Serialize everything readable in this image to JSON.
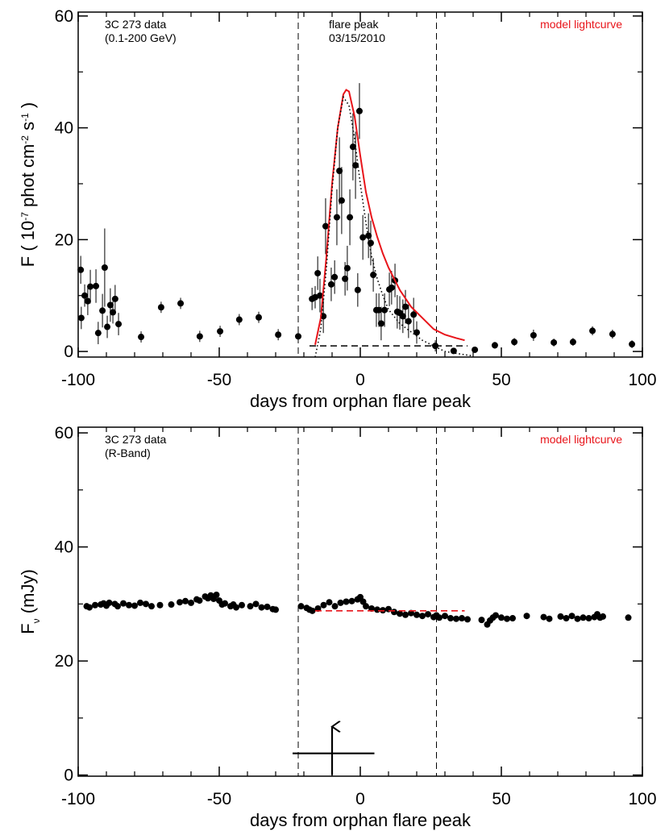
{
  "chart_data": [
    {
      "type": "scatter",
      "xlim": [
        -100,
        100
      ],
      "ylim": [
        -1,
        60.7
      ],
      "xticks": [
        -100,
        -50,
        0,
        50,
        100
      ],
      "yticks": [
        0,
        20,
        40,
        60
      ],
      "xminorticks": [
        -90,
        -80,
        -70,
        -60,
        -40,
        -30,
        -20,
        -10,
        10,
        20,
        30,
        40,
        60,
        70,
        80,
        90
      ],
      "yminorticks": [
        10,
        30,
        50
      ],
      "xlabel": "days from orphan flare peak",
      "ylabel": [
        "F ( 10",
        "-7",
        " phot cm",
        "-2",
        " s",
        "-1",
        " )"
      ],
      "ylabel_shift": "super",
      "notes_left": [
        "3C 273 data",
        "(0.1-200 GeV)"
      ],
      "notes_center": [
        "flare peak",
        "03/15/2010"
      ],
      "vlines": [
        -22,
        27
      ],
      "vline_style": "dashed",
      "series": [
        {
          "style": "points",
          "color": "#000000",
          "x": [
            -99.1,
            -98.9,
            -97.7,
            -96.6,
            -95.7,
            -93.7,
            -92.9,
            -91.4,
            -90.6,
            -89.7,
            -88.6,
            -87.7,
            -86.9,
            -85.7,
            -77.7,
            -70.6,
            -63.7,
            -56.9,
            -49.7,
            -42.9,
            -36,
            -29.1,
            -22,
            -17.1,
            -16,
            -15.1,
            -14.3,
            -13.1,
            -12.3,
            -10.3,
            -9.1,
            -8.3,
            -7.4,
            -6.6,
            -5.4,
            -4.6,
            -3.7,
            -2.6,
            -1.7,
            -0.9,
            -0.3,
            0.9,
            2.9,
            3.7,
            4.6,
            5.7,
            6.6,
            7.4,
            8.6,
            10.3,
            11.1,
            12.3,
            13.1,
            14,
            15.1,
            16,
            17.1,
            18.9,
            20,
            26.6,
            33.1,
            40.6,
            47.7,
            54.6,
            61.4,
            68.6,
            75.4,
            82.3,
            89.4,
            96.3
          ],
          "values": [
            14.6,
            6,
            10,
            9,
            11.6,
            11.7,
            3.3,
            7.3,
            15,
            4.4,
            8.3,
            7,
            9.4,
            4.9,
            2.6,
            7.9,
            8.6,
            2.7,
            3.6,
            5.7,
            6.1,
            3,
            2.7,
            9.4,
            9.7,
            14,
            10,
            6.3,
            22.4,
            12,
            13.3,
            24,
            32.3,
            27,
            13,
            14.9,
            24,
            36.6,
            33.3,
            11,
            43,
            20.4,
            20.7,
            19.4,
            13.7,
            7.4,
            7.4,
            5,
            7.4,
            11.1,
            11.4,
            12.7,
            7.1,
            6.9,
            6.3,
            8,
            5.4,
            6.6,
            3.4,
            1,
            0.1,
            0.3,
            1.1,
            1.7,
            2.9,
            1.6,
            1.7,
            3.7,
            3.1,
            1.3
          ],
          "errors": [
            2.5,
            2,
            2,
            2.5,
            3,
            3,
            2,
            3,
            7,
            2,
            3,
            2,
            2.5,
            2,
            1,
            1,
            1,
            1,
            1,
            1,
            1,
            1,
            1,
            2,
            2,
            3,
            3,
            3,
            5,
            3,
            3,
            5,
            6,
            6,
            3,
            4,
            5,
            6,
            6,
            3,
            5,
            4,
            4,
            4,
            3,
            3,
            3,
            3,
            3,
            3,
            3,
            3,
            3,
            3,
            3,
            3,
            3,
            3,
            2,
            1,
            0.5,
            0.5,
            0.6,
            0.7,
            1,
            0.7,
            0.7,
            0.8,
            0.8,
            0.7
          ]
        },
        {
          "name": "model lightcurve",
          "style": "line",
          "color": "#e8141a",
          "x": [
            -16,
            -14,
            -12,
            -10,
            -8,
            -6,
            -5,
            -4,
            -2,
            0,
            2,
            4,
            6,
            8,
            10,
            14,
            18,
            22,
            26,
            30,
            34,
            37
          ],
          "values": [
            1.2,
            6,
            17,
            30,
            40,
            46,
            46.8,
            46.5,
            42,
            35,
            28.5,
            24,
            20.5,
            17.5,
            15,
            11,
            8,
            6,
            4,
            3,
            2.4,
            2
          ]
        },
        {
          "style": "dotted",
          "color": "#000000",
          "x": [
            -16,
            -14,
            -12,
            -10,
            -8,
            -6,
            -4,
            -2,
            0,
            2,
            4,
            6,
            8,
            10,
            14,
            18,
            22,
            26,
            30,
            36,
            40
          ],
          "values": [
            -1,
            4,
            15,
            29,
            40,
            45.5,
            44,
            38,
            30,
            23,
            17,
            13,
            10,
            7.5,
            5,
            3.5,
            2,
            1,
            0,
            -0.5,
            -0.8
          ]
        },
        {
          "style": "dashed",
          "color": "#000000",
          "x": [
            -18,
            38
          ],
          "values": [
            1,
            1
          ]
        }
      ]
    },
    {
      "type": "scatter",
      "xlim": [
        -100,
        100
      ],
      "ylim": [
        -0.2,
        61
      ],
      "xticks": [
        -100,
        -50,
        0,
        50,
        100
      ],
      "yticks": [
        0,
        20,
        40,
        60
      ],
      "xminorticks": [
        -90,
        -80,
        -70,
        -60,
        -40,
        -30,
        -20,
        -10,
        10,
        20,
        30,
        40,
        60,
        70,
        80,
        90
      ],
      "yminorticks": [
        10,
        30,
        50
      ],
      "xlabel": "days from orphan flare peak",
      "ylabel": [
        "F",
        "ν",
        " (mJy)"
      ],
      "ylabel_shift": "sub",
      "notes_left": [
        "3C 273 data",
        "(R-Band)"
      ],
      "vlines": [
        -22,
        27
      ],
      "vline_style": "dashed",
      "series": [
        {
          "style": "points",
          "color": "#000000",
          "x": [
            -97,
            -96,
            -94,
            -92,
            -91,
            -90,
            -89,
            -87,
            -86,
            -84,
            -82,
            -80,
            -78,
            -76,
            -74,
            -71,
            -67,
            -64,
            -62,
            -60,
            -58,
            -57,
            -55,
            -54,
            -53,
            -52,
            -51,
            -50,
            -49,
            -48,
            -46,
            -45,
            -44,
            -42,
            -39,
            -37,
            -35,
            -33,
            -31,
            -30,
            -21,
            -19,
            -18,
            -17,
            -15,
            -13,
            -11,
            -9,
            -7,
            -5,
            -3,
            -1,
            0,
            1,
            2,
            4,
            6,
            8,
            10,
            12,
            14,
            16,
            18,
            20,
            22,
            24,
            26,
            27,
            28,
            30,
            32,
            34,
            36,
            38,
            43,
            45,
            46,
            47,
            48,
            50,
            52,
            54,
            59,
            65,
            67,
            71,
            73,
            75,
            77,
            79,
            81,
            83,
            84,
            85,
            86,
            95
          ],
          "values": [
            29.6,
            29.4,
            29.8,
            29.9,
            30.1,
            29.7,
            30.2,
            30,
            29.6,
            30.1,
            29.8,
            29.7,
            30.2,
            30,
            29.6,
            29.8,
            29.9,
            30.3,
            30.5,
            30.2,
            30.8,
            30.6,
            31.3,
            31,
            31.5,
            30.9,
            31.6,
            30.6,
            29.9,
            30.1,
            29.6,
            29.9,
            29.4,
            29.8,
            29.6,
            30,
            29.4,
            29.5,
            29.1,
            29,
            29.6,
            29.3,
            29,
            28.8,
            29.2,
            29.8,
            30.3,
            29.6,
            30.2,
            30.4,
            30.5,
            30.8,
            31.2,
            30.4,
            29.6,
            29.2,
            29,
            28.9,
            29.1,
            28.6,
            28.3,
            28.1,
            28.4,
            28.1,
            27.9,
            28.2,
            27.7,
            28,
            27.6,
            27.9,
            27.5,
            27.4,
            27.5,
            27.3,
            27.2,
            26.4,
            27.1,
            27.6,
            28,
            27.6,
            27.4,
            27.5,
            27.9,
            27.7,
            27.4,
            27.8,
            27.5,
            27.9,
            27.4,
            27.6,
            27.5,
            27.7,
            28.2,
            27.6,
            27.8,
            27.6
          ]
        },
        {
          "name": "model lightcurve",
          "style": "dashed",
          "color": "#e8141a",
          "x": [
            -16,
            37
          ],
          "values": [
            28.8,
            28.8
          ]
        },
        {
          "style": "solid",
          "color": "#000000",
          "x": [
            -24,
            5
          ],
          "values": [
            3.8,
            3.8
          ]
        },
        {
          "style": "arrow",
          "color": "#000000",
          "x": [
            -10,
            -10
          ],
          "values": [
            0,
            8.5
          ]
        }
      ]
    }
  ]
}
